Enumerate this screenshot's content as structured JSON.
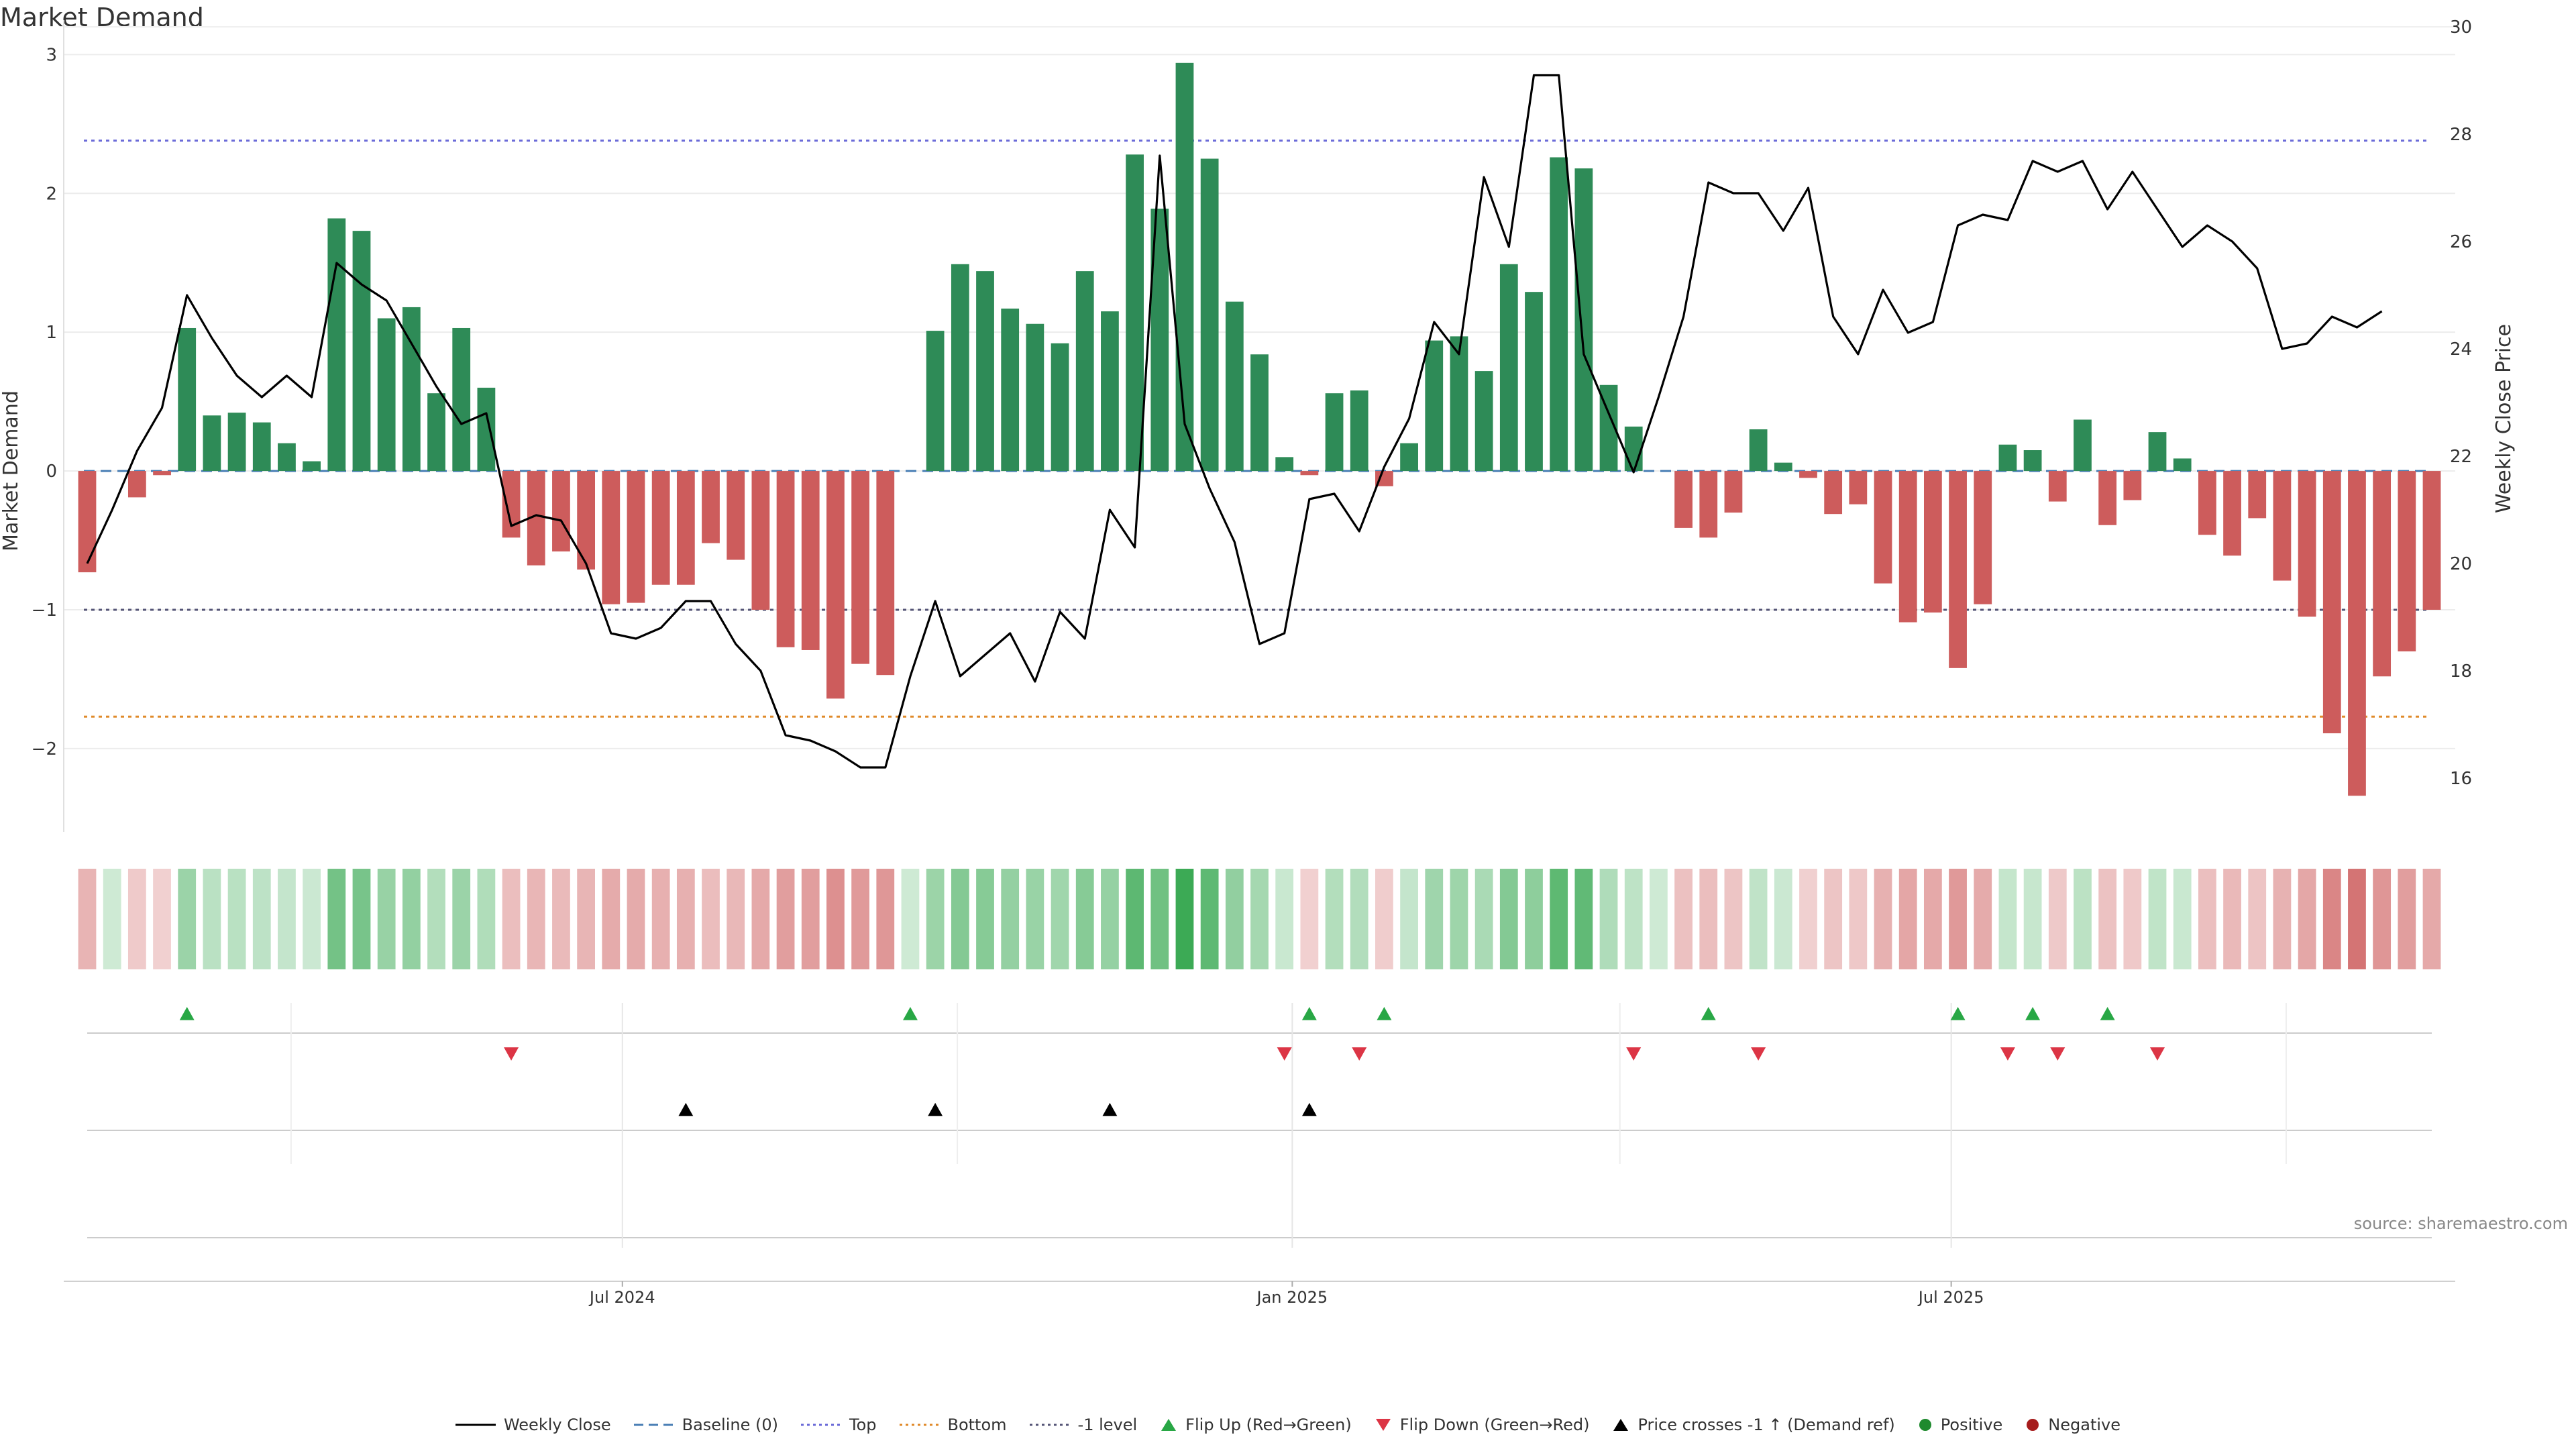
{
  "chart_data": {
    "type": "bar",
    "title": "Market Demand",
    "ylabel": "Market Demand",
    "y2label": "Weekly Close Price",
    "ylim": [
      -2.6,
      3.2
    ],
    "y2lim": [
      15.0,
      30.0
    ],
    "yticks": [
      3,
      2,
      1,
      0,
      -1,
      -2
    ],
    "ytick_labels": [
      "3",
      "2",
      "1",
      "0",
      "−1",
      "−2"
    ],
    "y2ticks": [
      30,
      28,
      26,
      24,
      22,
      20,
      18,
      16
    ],
    "x_start": "2024-02-05",
    "x_end": "2025-11-10",
    "xticks": [
      "2024-07-01",
      "2025-01-01",
      "2025-07-01"
    ],
    "xtick_labels": [
      "Jul 2024",
      "Jan 2025",
      "Jul 2025"
    ],
    "reference_lines": {
      "baseline": 0,
      "top": 2.38,
      "bottom": -1.77,
      "minus_one": -1
    },
    "demand": [
      -0.73,
      0.0,
      -0.19,
      -0.03,
      1.03,
      0.4,
      0.42,
      0.35,
      0.2,
      0.07,
      1.82,
      1.73,
      1.1,
      1.18,
      0.56,
      1.03,
      0.6,
      -0.48,
      -0.68,
      -0.58,
      -0.71,
      -0.96,
      -0.95,
      -0.82,
      -0.82,
      -0.52,
      -0.64,
      -1.0,
      -1.27,
      -1.29,
      -1.64,
      -1.39,
      -1.47,
      0.0,
      1.01,
      1.49,
      1.44,
      1.17,
      1.06,
      0.92,
      1.44,
      1.15,
      2.28,
      1.89,
      2.94,
      2.25,
      1.22,
      0.84,
      0.1,
      -0.03,
      0.56,
      0.58,
      -0.11,
      0.2,
      0.94,
      0.97,
      0.72,
      1.49,
      1.29,
      2.26,
      2.18,
      0.62,
      0.32,
      0.0,
      -0.41,
      -0.48,
      -0.3,
      0.3,
      0.06,
      -0.05,
      -0.31,
      -0.24,
      -0.81,
      -1.09,
      -1.02,
      -1.42,
      -0.96,
      0.19,
      0.15,
      -0.22,
      0.37,
      -0.39,
      -0.21,
      0.28,
      0.09,
      -0.46,
      -0.61,
      -0.34,
      -0.79,
      -1.05,
      -1.89,
      -2.34,
      -1.48,
      -1.3,
      -1.0
    ],
    "weekly_close": [
      20.0,
      21.0,
      22.1,
      22.9,
      25.0,
      24.2,
      23.5,
      23.1,
      23.5,
      23.1,
      25.6,
      25.2,
      24.9,
      24.1,
      23.3,
      22.6,
      22.8,
      20.7,
      20.9,
      20.8,
      20.0,
      18.7,
      18.6,
      18.8,
      19.3,
      19.3,
      18.5,
      18.0,
      16.8,
      16.7,
      16.5,
      16.2,
      16.2,
      17.9,
      19.3,
      17.9,
      18.3,
      18.7,
      17.8,
      19.1,
      18.6,
      21.0,
      20.3,
      27.6,
      22.6,
      21.4,
      20.4,
      18.5,
      18.7,
      21.2,
      21.3,
      20.6,
      21.8,
      22.7,
      24.5,
      23.9,
      27.2,
      25.9,
      29.1,
      29.1,
      23.9,
      22.8,
      21.7,
      23.1,
      24.6,
      27.1,
      26.9,
      26.9,
      26.2,
      27.0,
      24.6,
      23.9,
      25.1,
      24.3,
      24.5,
      26.3,
      26.5,
      26.4,
      27.5,
      27.3,
      27.5,
      26.6,
      27.3,
      26.6,
      25.9,
      26.3,
      26.0,
      25.5,
      24.0,
      24.1,
      24.6,
      24.4,
      24.7
    ],
    "flip_up_weeks": [
      4,
      33,
      49,
      52,
      65,
      75,
      78,
      81
    ],
    "flip_down_weeks": [
      17,
      48,
      51,
      62,
      67,
      77,
      79,
      83
    ],
    "price_cross_weeks": [
      24,
      34,
      41,
      49
    ],
    "series": [
      {
        "name": "Weekly Close",
        "style": "solid-line"
      },
      {
        "name": "Baseline (0)",
        "style": "dashed-line"
      },
      {
        "name": "Top",
        "style": "dotted-line"
      },
      {
        "name": "Bottom",
        "style": "dotted-line"
      },
      {
        "name": "-1 level",
        "style": "dotted-line"
      },
      {
        "name": "Flip Up (Red→Green)",
        "style": "triangle-up"
      },
      {
        "name": "Flip Down (Green→Red)",
        "style": "triangle-down"
      },
      {
        "name": "Price crosses -1 ↑ (Demand ref)",
        "style": "triangle-up"
      },
      {
        "name": "Positive",
        "style": "dot"
      },
      {
        "name": "Negative",
        "style": "dot"
      }
    ]
  },
  "source": "source: sharemaestro.com",
  "legend": {
    "weekly_close": "Weekly Close",
    "baseline": "Baseline (0)",
    "top": "Top",
    "bottom": "Bottom",
    "minus_one": "-1 level",
    "flip_up": "Flip Up (Red→Green)",
    "flip_down": "Flip Down (Green→Red)",
    "price_cross": "Price crosses -1 ↑ (Demand ref)",
    "positive": "Positive",
    "negative": "Negative"
  },
  "colors": {
    "positive": "#2e8b57",
    "negative": "#cd5c5c",
    "price_line": "#000000",
    "top_line": "#6a6ad8",
    "bottom_line": "#e08a2a",
    "minus_one_line": "#555577",
    "baseline": "#4a7fb5",
    "flip_up": "#28a745",
    "flip_down": "#dc3545",
    "price_cross": "#000000",
    "legend_positive": "#1e8a2e",
    "legend_negative": "#a61c1c"
  }
}
